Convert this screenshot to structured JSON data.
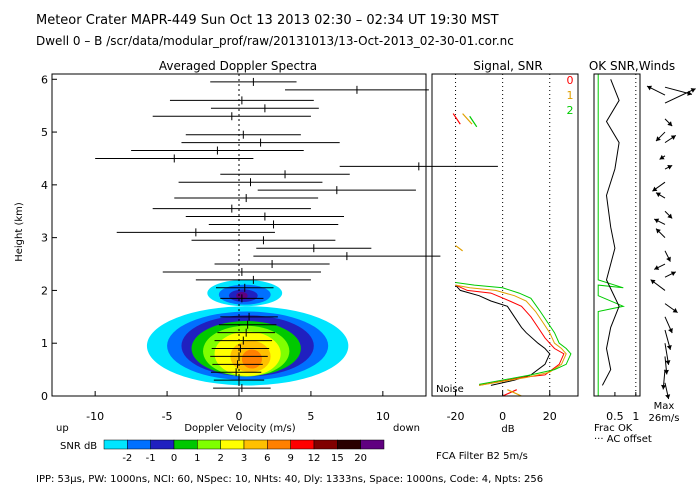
{
  "header": {
    "line1": "Meteor Crater   MAPR-449   Sun Oct 13 2013 02:30 – 02:34 UT 19:30 MST",
    "line2": "Dwell  0 –  B   /scr/data/modular_prof/raw/20131013/13-Oct-2013_02-30-01.cor.nc"
  },
  "footer": {
    "ipp": "IPP:  53µs,  PW: 1000ns,  NCI:  60,  NSpec: 10,  NHts: 40,  Dly: 1333ns,  Space: 1000ns,  Code: 4,  Npts: 256"
  },
  "colors": {
    "snr_scale": [
      "#00e5ff",
      "#0070ff",
      "#2020c0",
      "#00c800",
      "#7fff00",
      "#ffff00",
      "#ffc000",
      "#ff8000",
      "#ff0000",
      "#800000",
      "#2a0000",
      "#600080"
    ],
    "snr_ok0": "#ff0000",
    "snr_ok1": "#e0a000",
    "snr_ok2": "#00cc00"
  },
  "chart_data": [
    {
      "type": "heatmap",
      "title": "Averaged Doppler Spectra",
      "xlabel": "Doppler Velocity (m/s)",
      "ylabel": "Height (km)",
      "left_label": "up",
      "right_label": "down",
      "xlim": [
        -13,
        13
      ],
      "ylim": [
        0,
        6.1
      ],
      "xticks": [
        -10,
        -5,
        0,
        5,
        10
      ],
      "yticks": [
        0,
        1,
        2,
        3,
        4,
        5,
        6
      ],
      "colorbar_label": "SNR dB",
      "colorbar_ticks": [
        "-2",
        "-1",
        "0",
        "1",
        "2",
        "3",
        "6",
        "9",
        "12",
        "15",
        "20"
      ],
      "moment_bars": [
        {
          "h": 5.95,
          "center": 1.0,
          "width": 6.0
        },
        {
          "h": 5.8,
          "center": 8.2,
          "width": 10.0
        },
        {
          "h": 5.6,
          "center": 0.2,
          "width": 10.0
        },
        {
          "h": 5.45,
          "center": 1.8,
          "width": 7.5
        },
        {
          "h": 5.3,
          "center": -0.5,
          "width": 11.0
        },
        {
          "h": 4.95,
          "center": 0.3,
          "width": 8.0
        },
        {
          "h": 4.8,
          "center": 1.5,
          "width": 11.0
        },
        {
          "h": 4.65,
          "center": -1.5,
          "width": 12.0
        },
        {
          "h": 4.5,
          "center": -4.5,
          "width": 11.0
        },
        {
          "h": 4.35,
          "center": 12.5,
          "width": 11.0
        },
        {
          "h": 4.2,
          "center": 3.2,
          "width": 9.0
        },
        {
          "h": 4.05,
          "center": 0.8,
          "width": 10.0
        },
        {
          "h": 3.9,
          "center": 6.8,
          "width": 11.0
        },
        {
          "h": 3.75,
          "center": 0.5,
          "width": 10.0
        },
        {
          "h": 3.55,
          "center": -0.5,
          "width": 11.0
        },
        {
          "h": 3.4,
          "center": 1.8,
          "width": 11.0
        },
        {
          "h": 3.25,
          "center": 2.4,
          "width": 9.0
        },
        {
          "h": 3.1,
          "center": -3.0,
          "width": 11.0
        },
        {
          "h": 2.95,
          "center": 1.7,
          "width": 10.0
        },
        {
          "h": 2.8,
          "center": 5.2,
          "width": 8.0
        },
        {
          "h": 2.65,
          "center": 7.5,
          "width": 13.0
        },
        {
          "h": 2.5,
          "center": 2.3,
          "width": 8.0
        },
        {
          "h": 2.35,
          "center": 0.2,
          "width": 11.0
        },
        {
          "h": 2.2,
          "center": 1.0,
          "width": 8.0
        },
        {
          "h": 2.05,
          "center": 0.4,
          "width": 4.0
        },
        {
          "h": 1.85,
          "center": 0.2,
          "width": 3.0
        },
        {
          "h": 1.5,
          "center": 0.7,
          "width": 4.0
        },
        {
          "h": 1.35,
          "center": 0.6,
          "width": 4.0
        },
        {
          "h": 1.2,
          "center": 0.5,
          "width": 4.0
        },
        {
          "h": 1.05,
          "center": 0.3,
          "width": 4.0
        },
        {
          "h": 0.9,
          "center": 0.1,
          "width": 4.0
        },
        {
          "h": 0.75,
          "center": 0.0,
          "width": 4.0
        },
        {
          "h": 0.6,
          "center": -0.1,
          "width": 3.5
        },
        {
          "h": 0.45,
          "center": -0.2,
          "width": 3.5
        },
        {
          "h": 0.3,
          "center": 0.0,
          "width": 3.5
        },
        {
          "h": 0.15,
          "center": 0.2,
          "width": 4.0
        }
      ]
    },
    {
      "type": "line",
      "title": "Signal, SNR",
      "xlabel": "dB",
      "xlim": [
        -30,
        32
      ],
      "ylim": [
        0,
        6.1
      ],
      "xticks": [
        -20,
        0,
        20
      ],
      "annotation": "Noise",
      "legend": [
        "0",
        "1",
        "2"
      ],
      "series": [
        {
          "name": "signal",
          "color": "black",
          "points": [
            [
              -20,
              2.1
            ],
            [
              -18,
              2.0
            ],
            [
              -10,
              1.9
            ],
            [
              -5,
              1.8
            ],
            [
              2,
              1.7
            ],
            [
              5,
              1.5
            ],
            [
              8,
              1.3
            ],
            [
              10,
              1.2
            ],
            [
              15,
              1.0
            ],
            [
              18,
              0.9
            ],
            [
              20,
              0.8
            ],
            [
              18,
              0.6
            ],
            [
              12,
              0.4
            ],
            [
              5,
              0.3
            ],
            [
              -5,
              0.2
            ]
          ]
        },
        {
          "name": "0",
          "color": "#ff0000",
          "points": [
            [
              -20,
              2.1
            ],
            [
              -15,
              2.0
            ],
            [
              -5,
              1.95
            ],
            [
              3,
              1.8
            ],
            [
              8,
              1.7
            ],
            [
              12,
              1.5
            ],
            [
              15,
              1.3
            ],
            [
              18,
              1.1
            ],
            [
              20,
              1.0
            ],
            [
              22,
              0.9
            ],
            [
              26,
              0.8
            ],
            [
              24,
              0.6
            ],
            [
              18,
              0.4
            ],
            [
              8,
              0.35
            ],
            [
              -10,
              0.2
            ]
          ]
        },
        {
          "name": "1",
          "color": "#e0a000",
          "points": [
            [
              -20,
              2.1
            ],
            [
              -14,
              2.05
            ],
            [
              -3,
              2.0
            ],
            [
              5,
              1.9
            ],
            [
              10,
              1.8
            ],
            [
              14,
              1.6
            ],
            [
              17,
              1.4
            ],
            [
              20,
              1.2
            ],
            [
              22,
              1.0
            ],
            [
              25,
              0.9
            ],
            [
              27,
              0.8
            ],
            [
              25,
              0.6
            ],
            [
              20,
              0.45
            ],
            [
              10,
              0.35
            ],
            [
              -10,
              0.2
            ]
          ]
        },
        {
          "name": "2",
          "color": "#00cc00",
          "points": [
            [
              -20,
              2.15
            ],
            [
              -12,
              2.1
            ],
            [
              0,
              2.05
            ],
            [
              7,
              1.95
            ],
            [
              12,
              1.85
            ],
            [
              16,
              1.6
            ],
            [
              19,
              1.4
            ],
            [
              22,
              1.2
            ],
            [
              24,
              1.0
            ],
            [
              27,
              0.9
            ],
            [
              29,
              0.8
            ],
            [
              27,
              0.6
            ],
            [
              22,
              0.5
            ],
            [
              12,
              0.4
            ],
            [
              -10,
              0.22
            ]
          ]
        }
      ]
    },
    {
      "type": "line",
      "title": "OK SNR,Winds",
      "xlabel": "Frac OK",
      "xlim": [
        0,
        1.1
      ],
      "ylim": [
        0,
        6.1
      ],
      "xticks": [
        0.5,
        1
      ],
      "xtick_labels": [
        "0.5",
        "1"
      ],
      "legend_note": "··· AC offset",
      "wind_scale_label": "Max\n26m/s",
      "series": [
        {
          "name": "frac_ok_snr",
          "color": "#00cc00",
          "points": [
            [
              0.1,
              0.0
            ],
            [
              0.1,
              1.6
            ],
            [
              0.7,
              1.7
            ],
            [
              0.1,
              1.9
            ],
            [
              0.1,
              2.1
            ],
            [
              0.7,
              2.05
            ],
            [
              0.1,
              2.2
            ],
            [
              0.1,
              6.1
            ]
          ]
        },
        {
          "name": "frac_ok_winds",
          "color": "black",
          "points": [
            [
              0.2,
              0.2
            ],
            [
              0.4,
              0.5
            ],
            [
              0.3,
              0.9
            ],
            [
              0.4,
              1.3
            ],
            [
              0.6,
              1.7
            ],
            [
              0.3,
              2.2
            ],
            [
              0.5,
              2.8
            ],
            [
              0.4,
              3.2
            ],
            [
              0.3,
              3.8
            ],
            [
              0.5,
              4.3
            ],
            [
              0.6,
              4.8
            ],
            [
              0.3,
              5.2
            ],
            [
              0.6,
              5.6
            ],
            [
              0.4,
              6.0
            ]
          ]
        }
      ],
      "wind_vectors": [
        {
          "h": 5.85,
          "u": 1.5,
          "v": -0.4
        },
        {
          "h": 5.7,
          "u": -1.0,
          "v": 0.5
        },
        {
          "h": 5.55,
          "u": 1.7,
          "v": 0.8
        },
        {
          "h": 5.25,
          "u": 0.4,
          "v": -0.4
        },
        {
          "h": 5.0,
          "u": -0.5,
          "v": -0.5
        },
        {
          "h": 4.8,
          "u": 0.6,
          "v": 0.4
        },
        {
          "h": 4.55,
          "u": -0.3,
          "v": -0.2
        },
        {
          "h": 4.3,
          "u": 0.4,
          "v": 0.2
        },
        {
          "h": 4.05,
          "u": -0.7,
          "v": -0.5
        },
        {
          "h": 3.75,
          "u": -0.5,
          "v": 0.3
        },
        {
          "h": 3.5,
          "u": 0.4,
          "v": -0.4
        },
        {
          "h": 3.25,
          "u": -0.6,
          "v": 0.3
        },
        {
          "h": 3.0,
          "u": -0.5,
          "v": 0.5
        },
        {
          "h": 2.75,
          "u": 0.3,
          "v": -0.6
        },
        {
          "h": 2.5,
          "u": -0.6,
          "v": -0.3
        },
        {
          "h": 2.25,
          "u": 0.6,
          "v": 0.3
        },
        {
          "h": 2.0,
          "u": -0.8,
          "v": 0.6
        },
        {
          "h": 1.75,
          "u": 0.7,
          "v": -0.5
        },
        {
          "h": 1.5,
          "u": 0.4,
          "v": -0.9
        },
        {
          "h": 1.25,
          "u": 0.3,
          "v": -1.1
        },
        {
          "h": 1.0,
          "u": 0.2,
          "v": -1.2
        },
        {
          "h": 0.75,
          "u": 0.1,
          "v": -1.0
        },
        {
          "h": 0.5,
          "u": -0.1,
          "v": -1.1
        },
        {
          "h": 0.25,
          "u": 0.2,
          "v": -0.9
        }
      ]
    }
  ],
  "bottom_notes": {
    "filter": "FCA Filter B2   5m/s"
  }
}
